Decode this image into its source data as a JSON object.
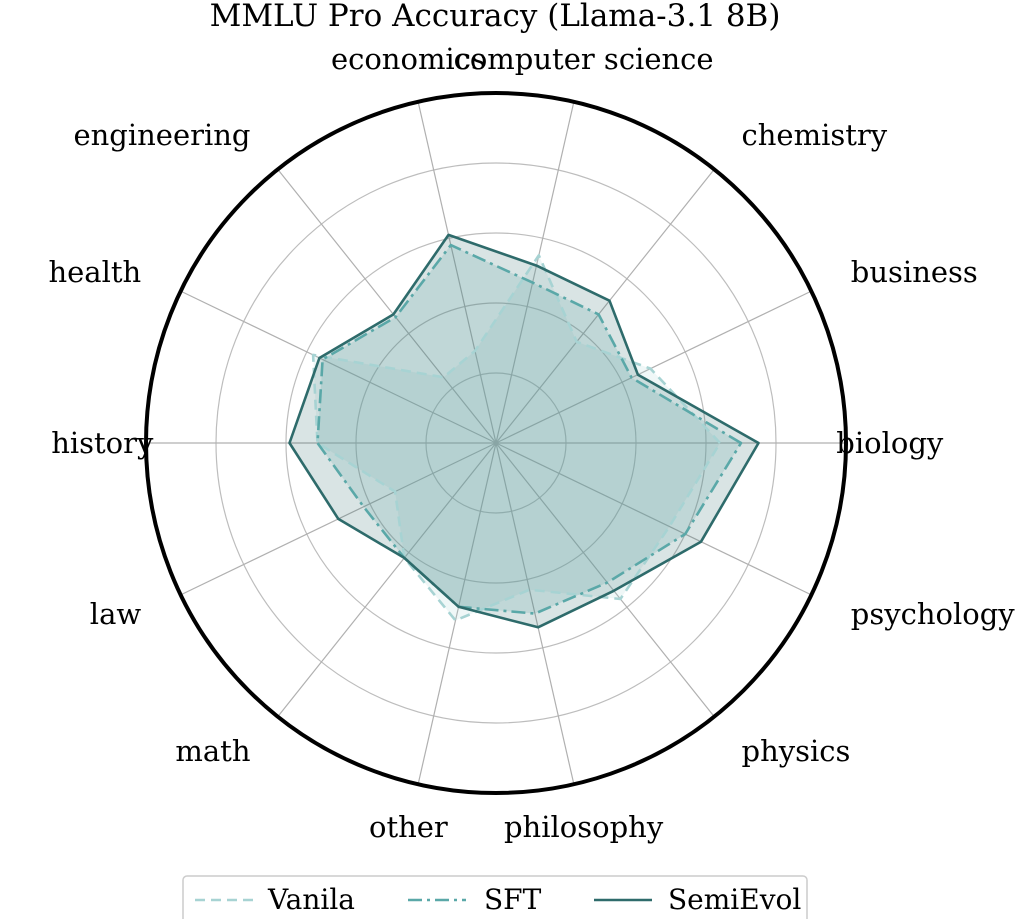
{
  "chart_data": {
    "type": "radar",
    "title": "MMLU Pro Accuracy (Llama-3.1 8B)",
    "categories": [
      "biology",
      "business",
      "chemistry",
      "computer science",
      "economics",
      "engineering",
      "health",
      "history",
      "law",
      "math",
      "other",
      "philosophy",
      "physics",
      "psychology"
    ],
    "rmax": 1.0,
    "rgrid": [
      0.2,
      0.4,
      0.6,
      0.8
    ],
    "grid": true,
    "legend_position": "bottom",
    "series": [
      {
        "name": "Vanila",
        "values": [
          0.64,
          0.49,
          0.37,
          0.55,
          0.27,
          0.24,
          0.58,
          0.51,
          0.32,
          0.42,
          0.52,
          0.43,
          0.57,
          0.55
        ],
        "color": "#a7d3d3",
        "line_style": "dashed"
      },
      {
        "name": "SFT",
        "values": [
          0.7,
          0.43,
          0.47,
          0.47,
          0.58,
          0.46,
          0.55,
          0.51,
          0.42,
          0.42,
          0.48,
          0.5,
          0.51,
          0.6
        ],
        "color": "#5aa8a8",
        "line_style": "dashdot"
      },
      {
        "name": "SemiEvol",
        "values": [
          0.75,
          0.45,
          0.52,
          0.52,
          0.61,
          0.47,
          0.56,
          0.59,
          0.5,
          0.42,
          0.48,
          0.54,
          0.54,
          0.65
        ],
        "color": "#2e6b6b",
        "line_style": "solid"
      }
    ]
  }
}
